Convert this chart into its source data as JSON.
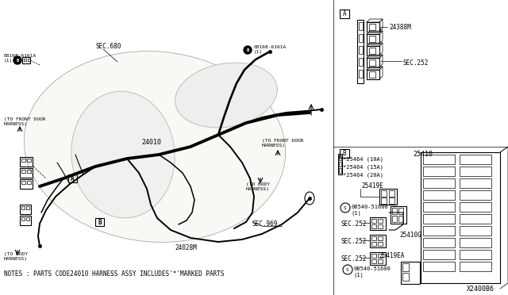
{
  "bg_color": "#ffffff",
  "figsize": [
    6.4,
    3.72
  ],
  "dpi": 100,
  "notes": "NOTES : PARTS CODE24010 HARNESS ASSY INCLUDES'*'MARKED PARTS",
  "diagram_code": "X2400B6",
  "part_labels": {
    "main_harness": "24010",
    "sub_harness": "24028M",
    "sec680": "SEC.680",
    "sec969": "SEC.969",
    "connector_top_right": "08168-6161A\n(1)",
    "connector_left": "08168-6161A\n(1)",
    "part_24388M": "24388M",
    "sec252_A": "SEC.252",
    "fuse_10A": "*25464 (10A)",
    "fuse_15A": "*25464 (15A)",
    "fuse_20A": "*25464 (20A)",
    "part_25410": "25410",
    "part_25419E": "25419E",
    "part_25410G": "25410G",
    "part_25419EA": "25419EA",
    "bolt1": "08540-51600\n(1)",
    "bolt2": "08540-51600\n(1)",
    "sec252_1": "SEC.252",
    "sec252_2": "SEC.252",
    "sec252_3": "SEC.252",
    "label_A": "A",
    "label_B": "B",
    "box_A": "A",
    "box_B": "B",
    "to_front_door1": "(TO FRONT DOOR\nHARNESS)",
    "to_front_door2": "(TO FRONT DOOR\nHARNESS)",
    "to_body1": "(TO BODY\nHARNESS)",
    "to_body2": "(TO BODY\nHARNESS)"
  }
}
